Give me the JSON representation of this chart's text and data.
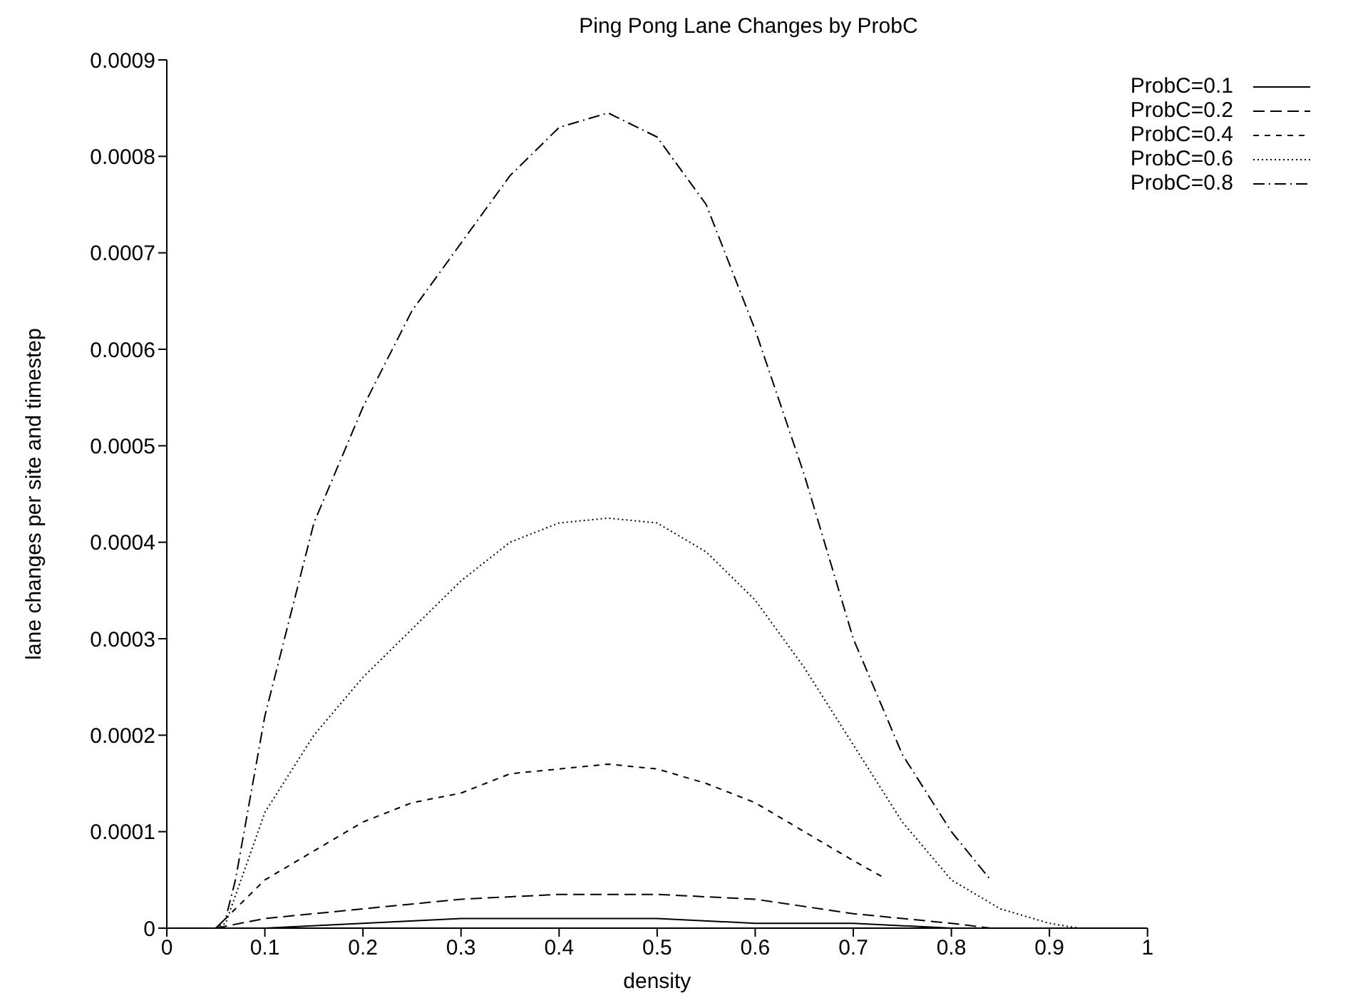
{
  "chart_data": {
    "type": "line",
    "title": "Ping Pong Lane Changes by ProbC",
    "xlabel": "density",
    "ylabel": "lane changes per site and timestep",
    "xlim": [
      0,
      1
    ],
    "xticks": [
      0,
      0.1,
      0.2,
      0.3,
      0.4,
      0.5,
      0.6,
      0.7,
      0.8,
      0.9,
      1
    ],
    "ylim": [
      0,
      0.0009
    ],
    "yticks": [
      0,
      0.0001,
      0.0002,
      0.0003,
      0.0004,
      0.0005,
      0.0006,
      0.0007,
      0.0008,
      0.0009
    ],
    "legend": "top right",
    "marker": "none",
    "series": [
      {
        "name": "ProbC=0.1",
        "color": "#000000",
        "line_style": "solid",
        "x": [
          0.05,
          0.1,
          0.2,
          0.3,
          0.4,
          0.5,
          0.6,
          0.7,
          0.8,
          0.84
        ],
        "values": [
          0,
          0,
          5e-06,
          1e-05,
          1e-05,
          1e-05,
          5e-06,
          5e-06,
          0,
          0
        ]
      },
      {
        "name": "ProbC=0.2",
        "color": "#000000",
        "line_style": "dashed",
        "x": [
          0.05,
          0.1,
          0.15,
          0.2,
          0.3,
          0.4,
          0.45,
          0.5,
          0.6,
          0.7,
          0.8,
          0.84
        ],
        "values": [
          0,
          1e-05,
          1.5e-05,
          2e-05,
          3e-05,
          3.5e-05,
          3.5e-05,
          3.5e-05,
          3e-05,
          1.5e-05,
          5e-06,
          0
        ]
      },
      {
        "name": "ProbC=0.4",
        "color": "#000000",
        "line_style": "shortdash",
        "x": [
          0.05,
          0.1,
          0.15,
          0.2,
          0.25,
          0.3,
          0.35,
          0.4,
          0.45,
          0.5,
          0.55,
          0.6,
          0.65,
          0.7,
          0.73
        ],
        "values": [
          0,
          5e-05,
          8e-05,
          0.00011,
          0.00013,
          0.00014,
          0.00016,
          0.000165,
          0.00017,
          0.000165,
          0.00015,
          0.00013,
          0.0001,
          7e-05,
          5.3e-05
        ]
      },
      {
        "name": "ProbC=0.6",
        "color": "#000000",
        "line_style": "dotted",
        "x": [
          0.05,
          0.06,
          0.1,
          0.15,
          0.2,
          0.25,
          0.3,
          0.35,
          0.4,
          0.45,
          0.5,
          0.55,
          0.6,
          0.65,
          0.7,
          0.75,
          0.8,
          0.85,
          0.9,
          0.93
        ],
        "values": [
          0,
          5e-06,
          0.00012,
          0.0002,
          0.00026,
          0.00031,
          0.00036,
          0.0004,
          0.00042,
          0.000425,
          0.00042,
          0.00039,
          0.00034,
          0.00027,
          0.00019,
          0.00011,
          5e-05,
          2e-05,
          5e-06,
          0
        ]
      },
      {
        "name": "ProbC=0.8",
        "color": "#000000",
        "line_style": "dashdot",
        "x": [
          0.05,
          0.06,
          0.07,
          0.1,
          0.15,
          0.2,
          0.25,
          0.3,
          0.35,
          0.4,
          0.45,
          0.5,
          0.55,
          0.6,
          0.65,
          0.7,
          0.75,
          0.8,
          0.84
        ],
        "values": [
          0,
          1e-05,
          5e-05,
          0.00022,
          0.00042,
          0.00054,
          0.00064,
          0.00071,
          0.00078,
          0.00083,
          0.000845,
          0.00082,
          0.00075,
          0.00062,
          0.00047,
          0.0003,
          0.00018,
          0.0001,
          5e-05
        ]
      }
    ]
  }
}
